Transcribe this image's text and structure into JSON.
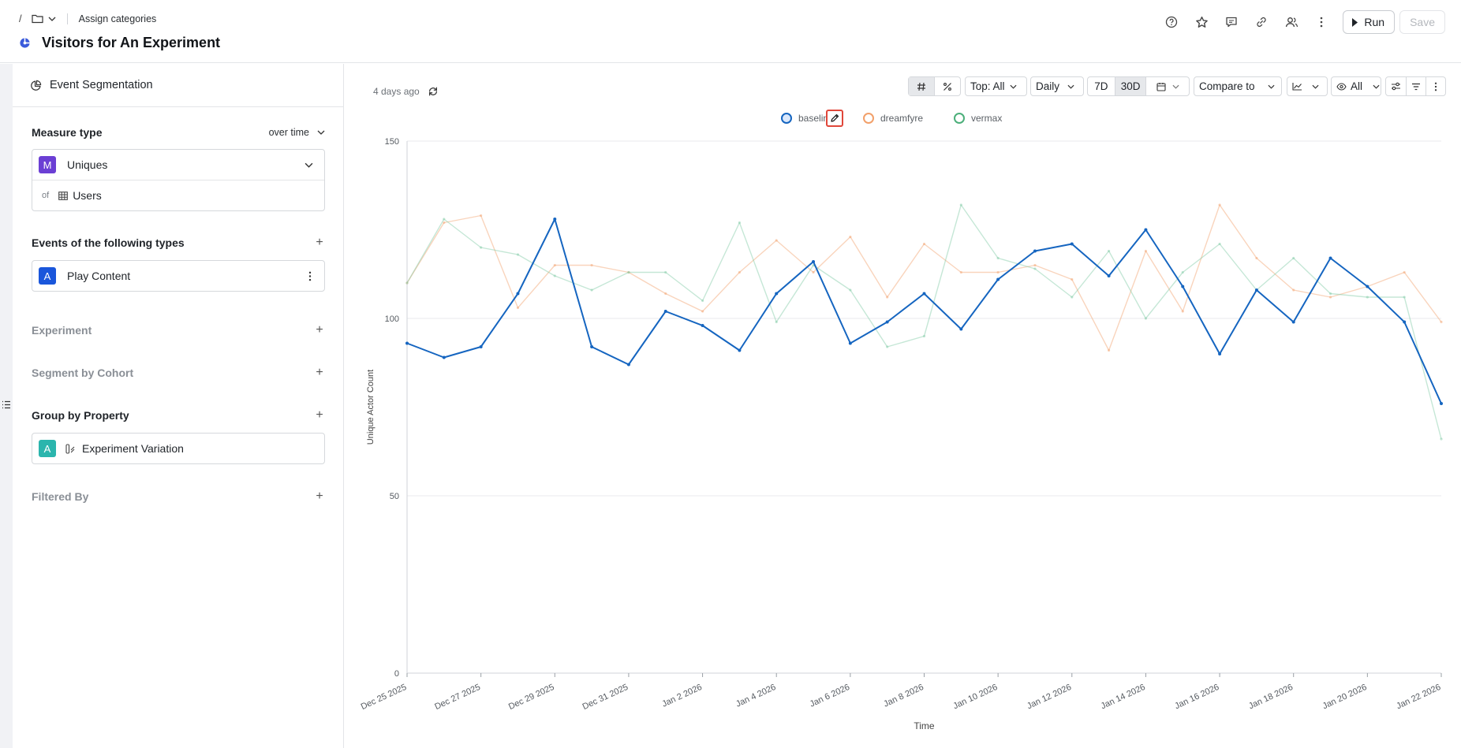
{
  "header": {
    "breadcrumb_slash": "/",
    "assign_label": "Assign categories",
    "title": "Visitors for An Experiment",
    "run_label": "Run",
    "save_label": "Save"
  },
  "sidebar": {
    "head_label": "Event Segmentation",
    "measure": {
      "title": "Measure type",
      "mode": "over time",
      "metric_badge": "M",
      "metric": "Uniques",
      "of_label": "of",
      "entity": "Users"
    },
    "events": {
      "title": "Events of the following types",
      "item_badge": "A",
      "item": "Play Content"
    },
    "experiment_title": "Experiment",
    "segment_title": "Segment by Cohort",
    "group": {
      "title": "Group by Property",
      "item_badge": "A",
      "item": "Experiment Variation"
    },
    "filtered_title": "Filtered By"
  },
  "toolbar": {
    "updated": "4 days ago",
    "top": "Top: All",
    "interval": "Daily",
    "range_7d": "7D",
    "range_30d": "30D",
    "compare": "Compare to",
    "visibility": "All"
  },
  "chart_data": {
    "type": "line",
    "xlabel": "Time",
    "ylabel": "Unique Actor Count",
    "ylim": [
      0,
      150
    ],
    "yticks": [
      0,
      50,
      100,
      150
    ],
    "grid": true,
    "legend_position": "top-center",
    "x": [
      "2025-12-25",
      "2025-12-26",
      "2025-12-27",
      "2025-12-28",
      "2025-12-29",
      "2025-12-30",
      "2025-12-31",
      "2026-01-01",
      "2026-01-02",
      "2026-01-03",
      "2026-01-04",
      "2026-01-05",
      "2026-01-06",
      "2026-01-07",
      "2026-01-08",
      "2026-01-09",
      "2026-01-10",
      "2026-01-11",
      "2026-01-12",
      "2026-01-13",
      "2026-01-14",
      "2026-01-15",
      "2026-01-16",
      "2026-01-17",
      "2026-01-18",
      "2026-01-19",
      "2026-01-20",
      "2026-01-21",
      "2026-01-22"
    ],
    "xtick_labels": [
      "Dec 25 2025",
      "Dec 27 2025",
      "Dec 29 2025",
      "Dec 31 2025",
      "Jan 2 2026",
      "Jan 4 2026",
      "Jan 6 2026",
      "Jan 8 2026",
      "Jan 10 2026",
      "Jan 12 2026",
      "Jan 14 2026",
      "Jan 16 2026",
      "Jan 18 2026",
      "Jan 20 2026",
      "Jan 22 2026"
    ],
    "series": [
      {
        "name": "baselin",
        "color": "#1565c0",
        "highlight": true,
        "values": [
          93,
          89,
          92,
          107,
          128,
          92,
          87,
          102,
          98,
          91,
          107,
          116,
          93,
          99,
          107,
          97,
          111,
          119,
          121,
          112,
          125,
          109,
          90,
          108,
          99,
          117,
          109,
          99,
          76
        ]
      },
      {
        "name": "dreamfyre",
        "color": "#f2a06a",
        "highlight": false,
        "values": [
          110,
          127,
          129,
          103,
          115,
          115,
          113,
          107,
          102,
          113,
          122,
          113,
          123,
          106,
          121,
          113,
          113,
          115,
          111,
          91,
          119,
          102,
          132,
          117,
          108,
          106,
          109,
          113,
          99
        ]
      },
      {
        "name": "vermax",
        "color": "#7fc9a5",
        "highlight": false,
        "values": [
          110,
          128,
          120,
          118,
          112,
          108,
          113,
          113,
          105,
          127,
          99,
          115,
          108,
          92,
          95,
          132,
          117,
          114,
          106,
          119,
          100,
          113,
          121,
          108,
          117,
          107,
          106,
          106,
          66
        ]
      }
    ]
  }
}
